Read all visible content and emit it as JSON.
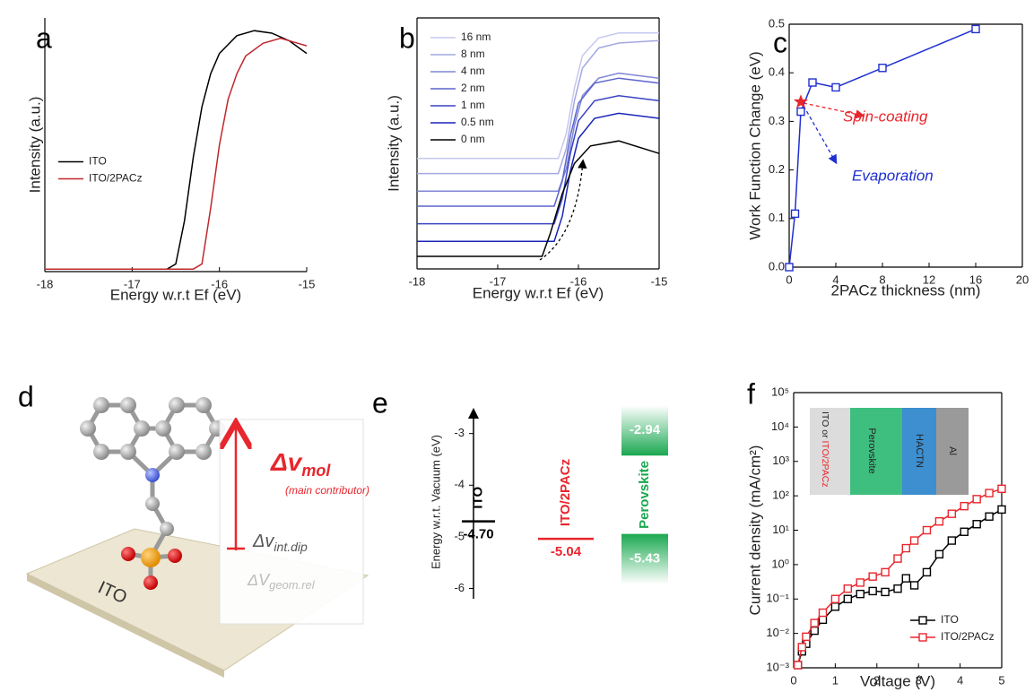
{
  "chart_data": [
    {
      "type": "line",
      "panel": "a",
      "xlabel": "Energy w.r.t Ef (eV)",
      "ylabel": "Intensity (a.u.)",
      "xlim": [
        -18,
        -15
      ],
      "xticks": [
        -18,
        -17,
        -16,
        -15
      ],
      "ylim": [
        0,
        1
      ],
      "legend": "center left",
      "series": [
        {
          "name": "ITO",
          "color": "#000000",
          "x": [
            -18,
            -16.6,
            -16.5,
            -16.4,
            -16.3,
            -16.2,
            -16.1,
            -16.0,
            -15.8,
            -15.6,
            -15.4,
            -15.2,
            -15
          ],
          "values": [
            0.01,
            0.01,
            0.03,
            0.2,
            0.45,
            0.65,
            0.78,
            0.86,
            0.93,
            0.95,
            0.94,
            0.91,
            0.86
          ]
        },
        {
          "name": "ITO/2PACz",
          "color": "#c0272d",
          "x": [
            -18,
            -16.3,
            -16.2,
            -16.1,
            -16.0,
            -15.9,
            -15.8,
            -15.7,
            -15.5,
            -15.3,
            -15.1,
            -15
          ],
          "values": [
            0.01,
            0.01,
            0.03,
            0.25,
            0.5,
            0.68,
            0.78,
            0.85,
            0.9,
            0.92,
            0.9,
            0.89
          ]
        }
      ]
    },
    {
      "type": "line",
      "panel": "b",
      "xlabel": "Energy w.r.t Ef (eV)",
      "ylabel": "Intensity (a.u.)",
      "xlim": [
        -18,
        -15
      ],
      "xticks": [
        -18,
        -17,
        -16,
        -15
      ],
      "ylim": [
        0,
        1
      ],
      "legend": "upper left",
      "series": [
        {
          "name": "16 nm",
          "color": "#c5c8ee",
          "x": [
            -18,
            -16.25,
            -16.15,
            -16.05,
            -15.95,
            -15.75,
            -15.5,
            -15
          ],
          "values": [
            0.44,
            0.44,
            0.54,
            0.72,
            0.85,
            0.92,
            0.94,
            0.94
          ]
        },
        {
          "name": "8 nm",
          "color": "#a3a8e0",
          "x": [
            -18,
            -16.25,
            -16.15,
            -16.05,
            -15.95,
            -15.75,
            -15.5,
            -15
          ],
          "values": [
            0.38,
            0.38,
            0.48,
            0.67,
            0.8,
            0.88,
            0.9,
            0.91
          ]
        },
        {
          "name": "4 nm",
          "color": "#7f86d6",
          "x": [
            -18,
            -16.25,
            -16.15,
            -16.05,
            -15.95,
            -15.75,
            -15.5,
            -15
          ],
          "values": [
            0.31,
            0.31,
            0.4,
            0.57,
            0.69,
            0.76,
            0.78,
            0.76
          ]
        },
        {
          "name": "2 nm",
          "color": "#5c64cc",
          "x": [
            -18,
            -16.3,
            -16.2,
            -16.1,
            -16.0,
            -15.8,
            -15.5,
            -15
          ],
          "values": [
            0.25,
            0.25,
            0.35,
            0.53,
            0.66,
            0.74,
            0.76,
            0.74
          ]
        },
        {
          "name": "1 nm",
          "color": "#3a43c2",
          "x": [
            -18,
            -16.3,
            -16.2,
            -16.1,
            -16.0,
            -15.8,
            -15.5,
            -15
          ],
          "values": [
            0.18,
            0.18,
            0.28,
            0.46,
            0.59,
            0.67,
            0.69,
            0.67
          ]
        },
        {
          "name": "0.5 nm",
          "color": "#1a24b8",
          "x": [
            -18,
            -16.3,
            -16.2,
            -16.1,
            -16.0,
            -15.8,
            -15.5,
            -15
          ],
          "values": [
            0.11,
            0.11,
            0.21,
            0.39,
            0.52,
            0.6,
            0.62,
            0.6
          ]
        },
        {
          "name": "0 nm",
          "color": "#000000",
          "x": [
            -18,
            -16.45,
            -16.35,
            -16.2,
            -16.05,
            -15.85,
            -15.5,
            -15
          ],
          "values": [
            0.05,
            0.05,
            0.14,
            0.3,
            0.42,
            0.49,
            0.51,
            0.46
          ]
        }
      ]
    },
    {
      "type": "line",
      "panel": "c",
      "xlabel": "2PACz thickness (nm)",
      "ylabel": "Work Function Change (eV)",
      "xlim": [
        0,
        20
      ],
      "xticks": [
        0,
        4,
        8,
        12,
        16,
        20
      ],
      "ylim": [
        0,
        0.5
      ],
      "yticks": [
        {
          "value": 0,
          "label": "0.0"
        },
        0.1,
        0.2,
        0.3,
        0.4,
        0.5
      ],
      "series": [
        {
          "name": "Evaporation",
          "color": "#1f2fd0",
          "marker": "square",
          "x": [
            0,
            0.5,
            1,
            2,
            4,
            8,
            16
          ],
          "values": [
            0,
            0.11,
            0.32,
            0.38,
            0.37,
            0.41,
            0.49
          ]
        },
        {
          "name": "Spin-coating",
          "color": "#e8262d",
          "marker": "star",
          "x": [
            1
          ],
          "values": [
            0.34
          ]
        }
      ]
    },
    {
      "type": "energy-level",
      "panel": "e",
      "ylabel": "Energy w.r.t. Vacuum (eV)",
      "ylim": [
        -6.2,
        -2.45
      ],
      "yticks": [
        -3,
        -4,
        -5,
        -6
      ],
      "levels": [
        {
          "name": "ITO",
          "color": "#000000",
          "style": "line",
          "values": [
            -4.7
          ],
          "value_labels": [
            "-4.70"
          ]
        },
        {
          "name": "ITO/2PACz",
          "color": "#e8262d",
          "style": "line",
          "values": [
            -5.04
          ]
        },
        {
          "name": "Perovskite",
          "color": "#1aa850",
          "style": "box",
          "values": [
            -2.94,
            -5.43
          ]
        }
      ]
    },
    {
      "type": "line",
      "panel": "f",
      "xlabel": "Voltage (V)",
      "ylabel": "Current density (mA/cm²)",
      "xlim": [
        0,
        5
      ],
      "xticks": [
        0,
        1,
        2,
        3,
        4,
        5
      ],
      "ylim": [
        0.001,
        100000
      ],
      "log_y": true,
      "legend": "lower right",
      "yticks": [
        {
          "value": 0.001,
          "label": "10⁻³"
        },
        {
          "value": 0.01,
          "label": "10⁻²"
        },
        {
          "value": 0.1,
          "label": "10⁻¹"
        },
        {
          "value": 1,
          "label": "10⁰"
        },
        {
          "value": 10,
          "label": "10¹"
        },
        {
          "value": 100,
          "label": "10²"
        },
        {
          "value": 1000,
          "label": "10³"
        },
        {
          "value": 10000,
          "label": "10⁴"
        },
        {
          "value": 100000,
          "label": "10⁵"
        }
      ],
      "inset_layers": [
        "ITO or ",
        "ITO/2PACz",
        "Perovskite",
        "HACTN",
        "Al"
      ],
      "series": [
        {
          "name": "ITO",
          "color": "#000000",
          "marker": "square",
          "x": [
            0.1,
            0.2,
            0.3,
            0.5,
            0.7,
            1.0,
            1.3,
            1.6,
            1.9,
            2.2,
            2.5,
            2.7,
            2.9,
            3.2,
            3.5,
            3.8,
            4.1,
            4.4,
            4.7,
            5.0
          ],
          "values": [
            0.0012,
            0.003,
            0.005,
            0.012,
            0.025,
            0.06,
            0.1,
            0.14,
            0.17,
            0.16,
            0.2,
            0.4,
            0.25,
            0.6,
            2,
            5,
            9,
            15,
            25,
            40
          ]
        },
        {
          "name": "ITO/2PACz",
          "color": "#e8262d",
          "marker": "square",
          "x": [
            0.1,
            0.2,
            0.3,
            0.5,
            0.7,
            1.0,
            1.3,
            1.6,
            1.9,
            2.2,
            2.5,
            2.7,
            2.9,
            3.2,
            3.5,
            3.8,
            4.1,
            4.4,
            4.7,
            5.0
          ],
          "values": [
            0.0012,
            0.004,
            0.008,
            0.02,
            0.04,
            0.1,
            0.2,
            0.3,
            0.45,
            0.6,
            1.5,
            3,
            5,
            10,
            18,
            30,
            50,
            80,
            120,
            160
          ]
        }
      ]
    }
  ],
  "panel_d": {
    "panel": "d",
    "substrate": "ITO",
    "terms": [
      {
        "symbol": "Δv",
        "sub": "mol",
        "note": "(main contributor)"
      },
      {
        "symbol": "Δv",
        "sub": "int.dip"
      },
      {
        "symbol": "ΔV",
        "sub": "geom.rel"
      }
    ]
  }
}
